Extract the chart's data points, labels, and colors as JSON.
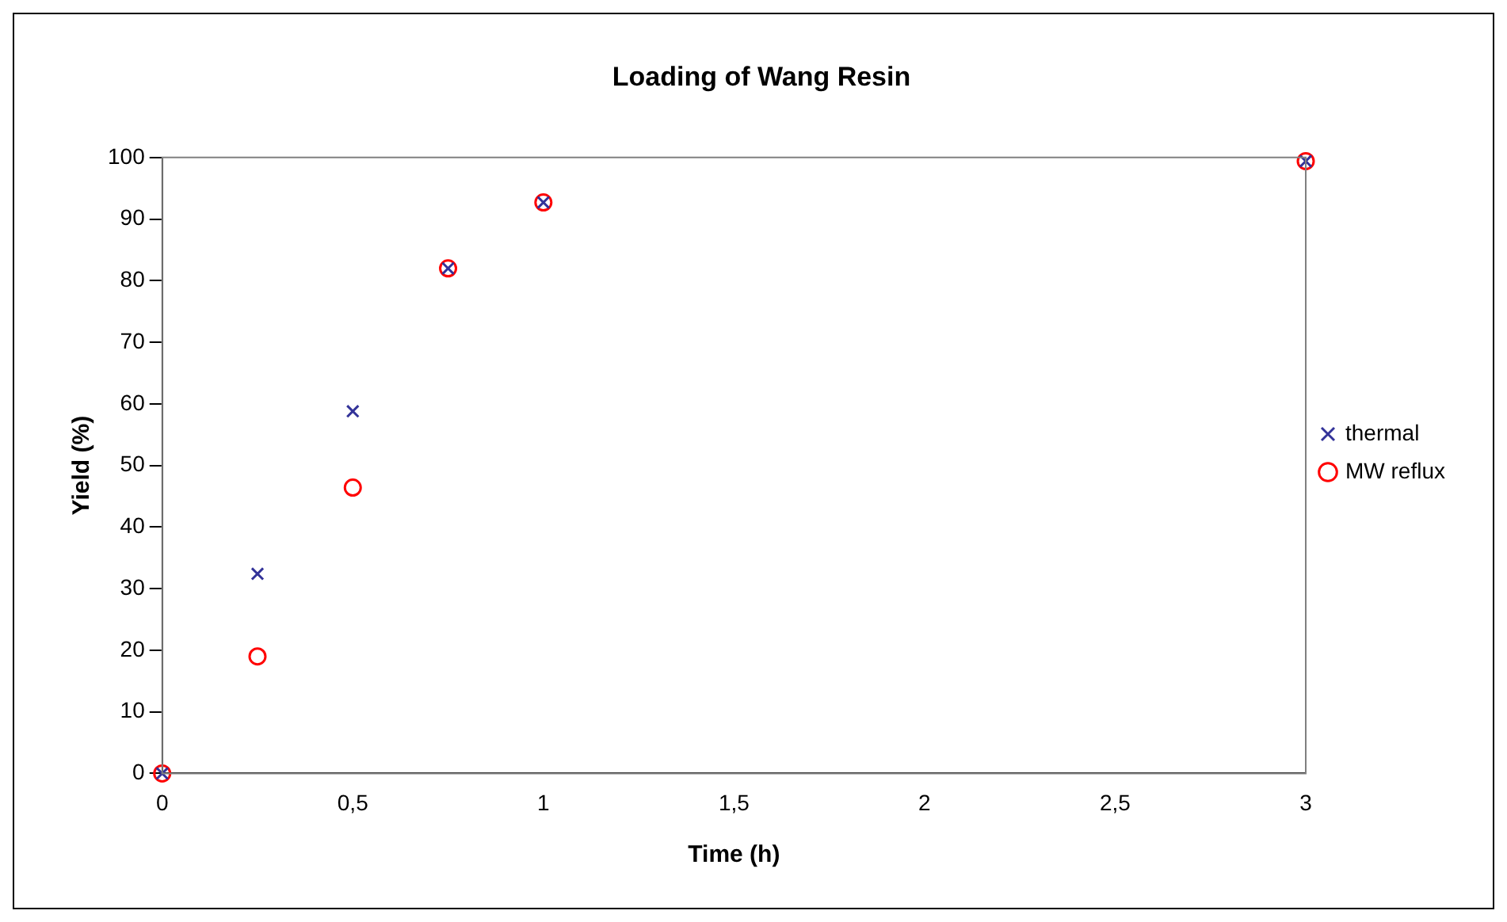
{
  "chart_data": {
    "type": "scatter",
    "title": "Loading of Wang Resin",
    "xlabel": "Time (h)",
    "ylabel": "Yield (%)",
    "x": [
      0,
      0.25,
      0.5,
      0.75,
      1,
      3
    ],
    "series": [
      {
        "name": "thermal",
        "color": "#333399",
        "marker": "cross",
        "values": [
          0,
          32.4,
          58.8,
          82,
          92.7,
          99.4
        ]
      },
      {
        "name": "MW reflux",
        "color": "#ff0000",
        "marker": "circle",
        "values": [
          0,
          19,
          46.4,
          82,
          92.7,
          99.4
        ]
      }
    ],
    "xlim": [
      0,
      3
    ],
    "xticks": [
      0,
      {
        "value": 0.5,
        "label": "0,5"
      },
      1,
      {
        "value": 1.5,
        "label": "1,5"
      },
      2,
      {
        "value": 2.5,
        "label": "2,5"
      },
      3
    ],
    "ylim": [
      0,
      100
    ],
    "yticks": [
      0,
      10,
      20,
      30,
      40,
      50,
      60,
      70,
      80,
      90,
      100
    ],
    "grid": false,
    "legend": "right"
  }
}
